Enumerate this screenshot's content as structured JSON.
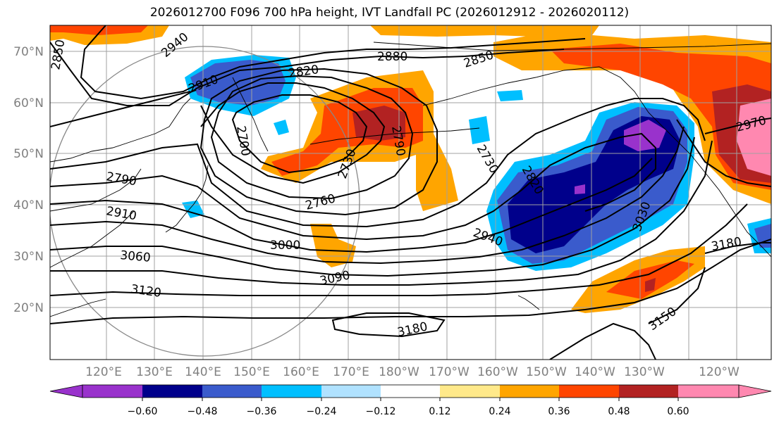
{
  "title": "2026012700 F096 700 hPa height, IVT Landfall PC (2026012912 - 2026020112)",
  "map": {
    "lat_labels": [
      "70°N",
      "60°N",
      "50°N",
      "40°N",
      "30°N",
      "20°N"
    ],
    "lon_labels": [
      "120°E",
      "130°E",
      "140°E",
      "150°E",
      "160°E",
      "170°E",
      "180°W",
      "170°W",
      "160°W",
      "150°W",
      "140°W",
      "130°W",
      "120°W"
    ],
    "contour_labels": [
      "2850",
      "2940",
      "2910",
      "2820",
      "2880",
      "2850",
      "2700",
      "2730",
      "2790",
      "2730",
      "2760",
      "2820",
      "2790",
      "2910",
      "3000",
      "2940",
      "3030",
      "3060",
      "3090",
      "3120",
      "3180",
      "3150",
      "3180",
      "3150",
      "2970"
    ]
  },
  "colorbar": {
    "ticks": [
      "−0.60",
      "−0.48",
      "−0.36",
      "−0.24",
      "−0.12",
      "0.12",
      "0.24",
      "0.36",
      "0.48",
      "0.60"
    ],
    "colors": [
      "#9932CC",
      "#00008B",
      "#3A5BCC",
      "#00BFFF",
      "#B0E2FF",
      "#FFFFFF",
      "#FFE98A",
      "#FFA500",
      "#FF4500",
      "#B22222",
      "#FF88B0"
    ]
  },
  "colors": {
    "neg_strong": "#9932CC",
    "neg_deep": "#00008B",
    "neg_mid": "#3A5BCC",
    "neg_light": "#00BFFF",
    "pos_light": "#FFA500",
    "pos_mid": "#FF4500",
    "pos_strong": "#B22222",
    "pos_max": "#FF88B0"
  }
}
